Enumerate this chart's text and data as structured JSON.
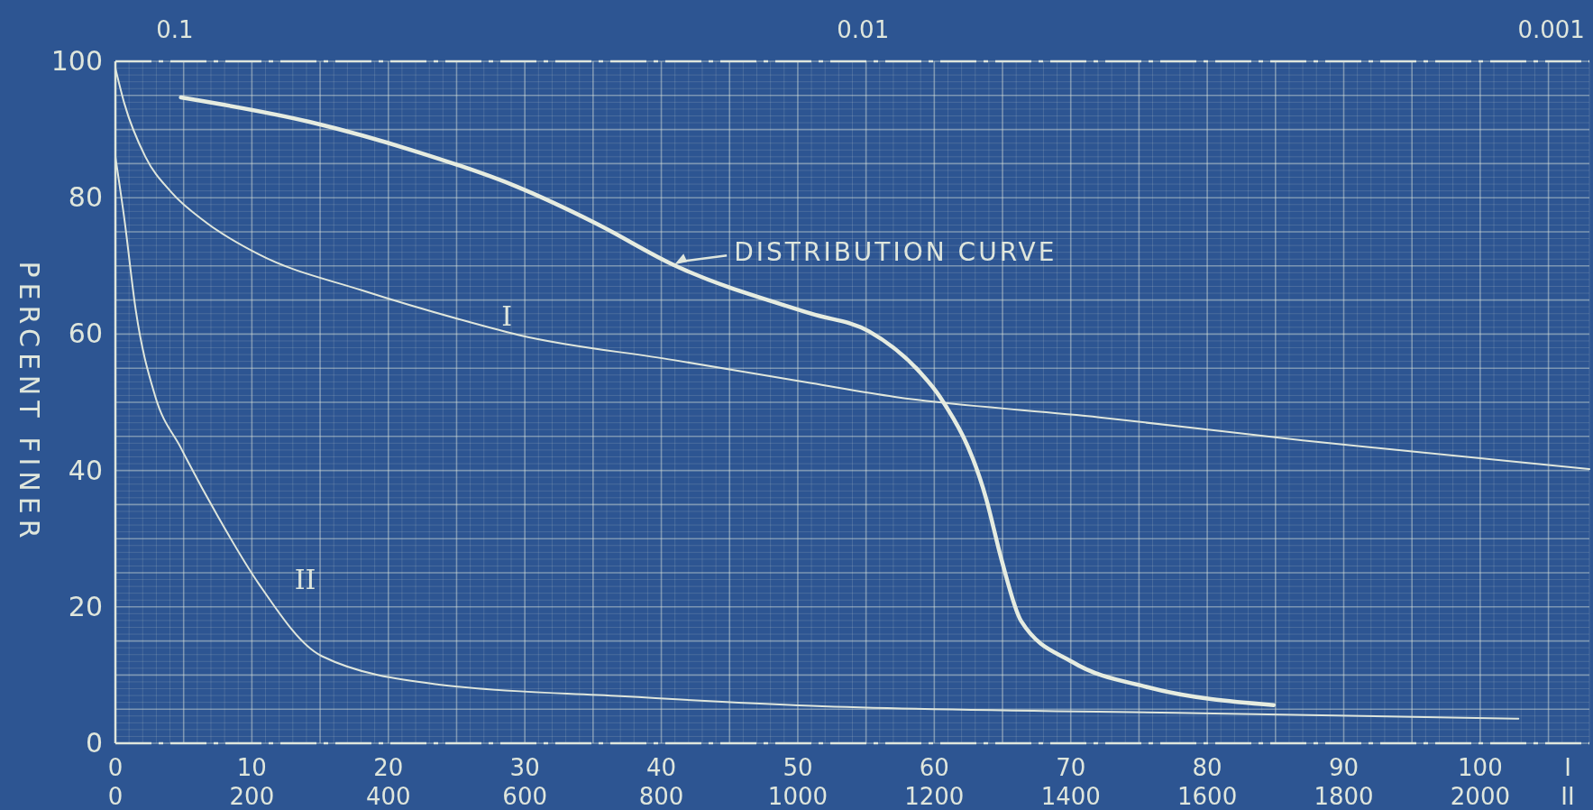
{
  "chart_data": [
    {
      "type": "line",
      "ylabel": "PERCENT FINER",
      "xlabel": "I",
      "xlim": [
        0,
        108
      ],
      "xticks": [
        0,
        10,
        20,
        30,
        40,
        50,
        60,
        70,
        80,
        90,
        100
      ],
      "x2lim": [
        0.122,
        0.00088
      ],
      "x2ticks": [
        0.1,
        0.01,
        0.001
      ],
      "log": "x2",
      "ylim": [
        0,
        100
      ],
      "yticks": [
        0,
        20,
        40,
        60,
        80,
        100
      ],
      "grid": true,
      "series": [
        {
          "name": "I",
          "color": "#dfe6dc",
          "x": [
            0,
            0.66,
            2.2,
            4.1,
            6.7,
            10.5,
            18.1,
            25.7,
            29.5,
            40.9,
            51,
            57.1,
            72.1,
            87,
            108
          ],
          "values": [
            99,
            93.8,
            86,
            80.8,
            76.3,
            71.7,
            66.4,
            61.9,
            59.9,
            56.2,
            52.8,
            50.8,
            47.8,
            44.4,
            40.2
          ]
        },
        {
          "name": "DISTRIBUTION CURVE",
          "axis": "x2",
          "color": "#e6ece0",
          "x": [
            0.098,
            0.0636,
            0.045,
            0.0318,
            0.0245,
            0.0189,
            0.0119,
            0.0098,
            0.00828,
            0.00773,
            0.00662,
            0.00629,
            0.00589,
            0.00496,
            0.00385,
            0.00253
          ],
          "values": [
            94.7,
            91.1,
            86.9,
            81.6,
            76.3,
            70.2,
            63,
            60.4,
            54.5,
            50.8,
            35.8,
            26.9,
            17.9,
            11.9,
            8.2,
            5.6
          ]
        }
      ]
    },
    {
      "type": "line",
      "xlabel": "II",
      "xlim": [
        0,
        2160
      ],
      "xticks": [
        0,
        200,
        400,
        600,
        800,
        1000,
        1200,
        1400,
        1600,
        1800,
        2000
      ],
      "ylim": [
        0,
        100
      ],
      "tick_labels": "x",
      "series": [
        {
          "name": "II",
          "color": "#dfe6dc",
          "x": [
            0,
            13,
            30,
            58,
            96,
            150,
            210,
            302,
            474,
            740,
            1020,
            1590,
            2056
          ],
          "values": [
            86,
            77,
            63.4,
            51,
            43.3,
            33.3,
            23.4,
            12.8,
            8.6,
            6.9,
            5.5,
            4.4,
            3.6
          ]
        }
      ]
    }
  ]
}
